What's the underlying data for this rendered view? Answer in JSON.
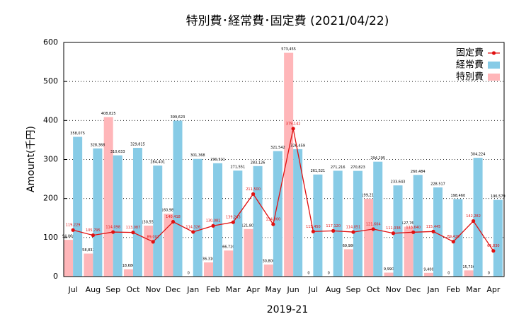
{
  "chart_data": {
    "type": "bar",
    "title": "特別費･経常費･固定費 (2021/04/22)",
    "x_label": "2019-21",
    "y_label": "Amount(千円)",
    "categories": [
      "Jul",
      "Aug",
      "Sep",
      "Oct",
      "Nov",
      "Dec",
      "Jan",
      "Feb",
      "Mar",
      "Apr",
      "May",
      "Jun",
      "Jul",
      "Aug",
      "Sep",
      "Oct",
      "Nov",
      "Dec",
      "Jan",
      "Feb",
      "Mar",
      "Apr"
    ],
    "ylim": [
      0,
      600
    ],
    "yticks": [
      0,
      100,
      200,
      300,
      400,
      500,
      600
    ],
    "grid": true,
    "legend": "top-right",
    "series": [
      {
        "name": "固定費",
        "type": "line",
        "color": "#e01010",
        "values": [
          119.229,
          105.795,
          114.098,
          113.087,
          89.002,
          140.418,
          114.326,
          130.081,
          139.243,
          211.5,
          134.0,
          379.142,
          115.45,
          117.12,
          114.051,
          121.604,
          111.038,
          113.64,
          115.445,
          89.42,
          142.282,
          65.83
        ],
        "value_labels": [
          "119,229",
          "105,795",
          "114,098",
          "113,087",
          "89,002",
          "140,418",
          "114,326",
          "130,081",
          "139,243",
          "211,500",
          "134,000",
          "379,142",
          "115,450",
          "117,120",
          "114,051",
          "121,604",
          "111,038",
          "113,640",
          "115,445",
          "89,420",
          "142,282",
          "65,830"
        ]
      },
      {
        "name": "経常費",
        "type": "bar",
        "color": "#87cbe6",
        "values": [
          358.075,
          328.368,
          310.633,
          329.815,
          284.401,
          399.623,
          301.368,
          290.521,
          271.551,
          283.126,
          321.542,
          326.459,
          261.521,
          271.216,
          270.823,
          294.295,
          233.643,
          260.484,
          228.517,
          198.46,
          304.224,
          196.579
        ],
        "value_labels": [
          "358,075",
          "328,368",
          "310,633",
          "329,815",
          "284,401",
          "399,623",
          "301,368",
          "290,521",
          "271,551",
          "283,126",
          "321,542",
          "326,459",
          "261,521",
          "271,216",
          "270,823",
          "294,295",
          "233,643",
          "260,484",
          "228,517",
          "198,460",
          "304,224",
          "196,579"
        ]
      },
      {
        "name": "特別費",
        "type": "bar",
        "color": "#ffb6b9",
        "values": [
          94.066,
          58.832,
          408.825,
          18.686,
          130.554,
          160.988,
          0,
          36.31,
          66.72,
          121.8,
          30.8,
          573.455,
          0,
          0,
          69.98,
          199.213,
          9.99,
          127.765,
          9.4,
          0,
          15.73,
          0
        ],
        "value_labels": [
          "94,066",
          "58,832",
          "408,825",
          "18,686",
          "130,554",
          "160,988",
          "0",
          "36,310",
          "66,720",
          "121,800",
          "30,800",
          "573,455",
          "0",
          "0",
          "69,980",
          "199,213",
          "9,990",
          "127,765",
          "9,400",
          "0",
          "15,730",
          "0"
        ]
      }
    ]
  }
}
